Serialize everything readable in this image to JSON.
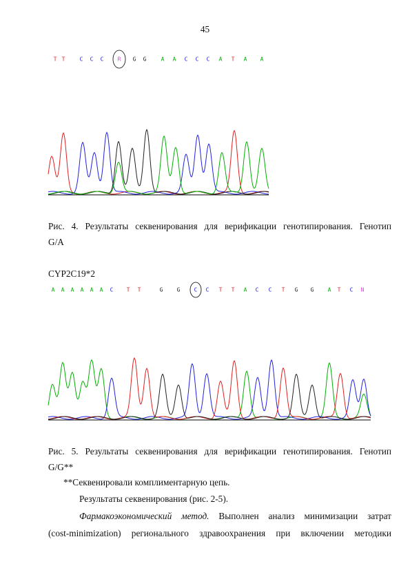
{
  "page_number": "45",
  "base_colors": {
    "A": "#00b000",
    "C": "#2020e0",
    "G": "#202020",
    "T": "#e02020",
    "R": "#e040e0",
    "N": "#e040e0"
  },
  "sequence_1": {
    "bases": [
      "T",
      "T",
      "C",
      "C",
      "C",
      "R",
      "G",
      "G",
      "A",
      "A",
      "C",
      "C",
      "C",
      "A",
      "T",
      "A",
      "A"
    ]
  },
  "caption_1": {
    "line_1": "Рис. 4. Результаты секвенирования для верификации генотипирования. Генотип",
    "line_2": "G/A"
  },
  "heading_2": "CYP2C19*2",
  "sequence_2": {
    "bases": [
      "A",
      "A",
      "A",
      "A",
      "A",
      "A",
      "C",
      "T",
      "T",
      "G",
      "G",
      "C",
      "C",
      "T",
      "T",
      "A",
      "C",
      "C",
      "T",
      "G",
      "G",
      "A",
      "T",
      "C",
      "N"
    ]
  },
  "caption_2": {
    "line_1": "Рис. 5. Результаты секвенирования для верификации генотипирования. Генотип",
    "line_2": "G/G**"
  },
  "paragraphs": {
    "note": "**Секвенировали комплиментарную цепь.",
    "results": "Результаты секвенирования (рис. 2-5).",
    "method_title": "Фармакоэкономический метод.",
    "method_line_1": "Выполнен анализ минимизации затрат",
    "method_line_2": "(cost-minimization) регионального здравоохранения при включении методики"
  }
}
